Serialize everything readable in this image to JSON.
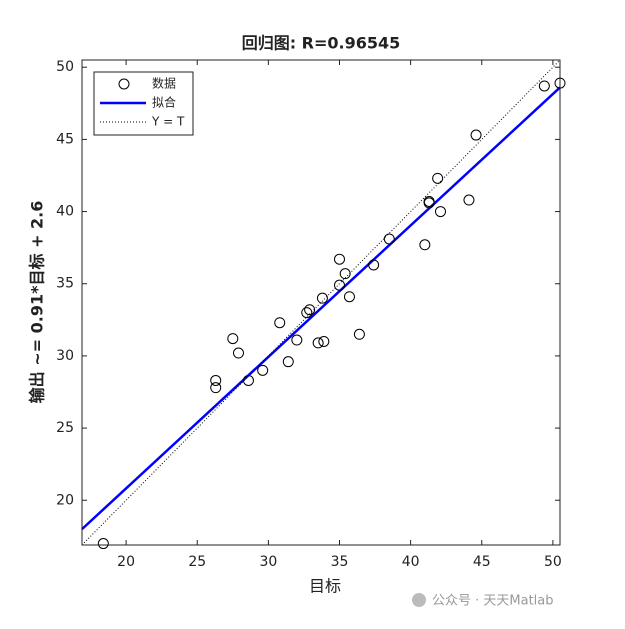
{
  "chart_data": {
    "type": "scatter",
    "title": "回归图: R=0.96545",
    "xlabel": "目标",
    "ylabel": "输出 ~= 0.91*目标 + 2.6",
    "xlim": [
      16.9,
      50.5
    ],
    "ylim": [
      16.9,
      50.5
    ],
    "xticks": [
      20,
      25,
      30,
      35,
      40,
      45,
      50
    ],
    "yticks": [
      20,
      25,
      30,
      35,
      40,
      45,
      50
    ],
    "legend_position": "upper-left",
    "series": [
      {
        "name": "数据",
        "color": "#000000",
        "kind": "points",
        "x": [
          18.4,
          26.3,
          26.3,
          27.5,
          27.9,
          28.6,
          29.6,
          30.8,
          31.4,
          32.0,
          32.7,
          32.9,
          33.5,
          33.9,
          33.8,
          35.0,
          35.0,
          35.4,
          35.7,
          36.4,
          37.4,
          38.5,
          41.0,
          41.3,
          41.3,
          41.9,
          42.1,
          44.1,
          44.6,
          49.4,
          50.5
        ],
        "values": [
          17.0,
          28.3,
          27.8,
          31.2,
          30.2,
          28.3,
          29.0,
          32.3,
          29.6,
          31.1,
          33.0,
          33.2,
          30.9,
          31.0,
          34.0,
          34.9,
          36.7,
          35.7,
          34.1,
          31.5,
          36.3,
          38.1,
          37.7,
          40.7,
          40.6,
          42.3,
          40.0,
          40.8,
          45.3,
          48.7,
          48.9
        ]
      },
      {
        "name": "拟合",
        "color": "#0000ff",
        "kind": "line",
        "x": [
          16.9,
          50.5
        ],
        "values": [
          18.0,
          48.6
        ]
      },
      {
        "name": "Y = T",
        "color": "#000000",
        "kind": "dotted",
        "x": [
          16.9,
          50.5
        ],
        "values": [
          16.9,
          50.5
        ]
      }
    ]
  },
  "watermark": "公众号 · 天天Matlab"
}
